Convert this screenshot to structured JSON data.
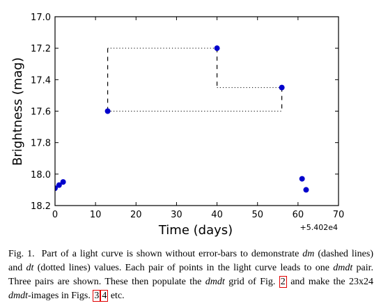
{
  "chart_data": {
    "type": "scatter",
    "xlabel": "Time (days)",
    "ylabel": "Brightness (mag)",
    "x_offset_label": "+5.402e4",
    "xlim": [
      0,
      70
    ],
    "ylim": [
      18.2,
      17.0
    ],
    "y_inverted": true,
    "grid": false,
    "x_ticks": [
      0,
      10,
      20,
      30,
      40,
      50,
      60,
      70
    ],
    "x_tick_labels": [
      "0",
      "10",
      "20",
      "30",
      "40",
      "50",
      "60",
      "70"
    ],
    "y_ticks": [
      17.0,
      17.2,
      17.4,
      17.6,
      17.8,
      18.0,
      18.2
    ],
    "y_tick_labels": [
      "17.0",
      "17.2",
      "17.4",
      "17.6",
      "17.8",
      "18.0",
      "18.2"
    ],
    "points": [
      {
        "x": 0,
        "y": 18.09
      },
      {
        "x": 1,
        "y": 18.07
      },
      {
        "x": 2,
        "y": 18.05
      },
      {
        "x": 13,
        "y": 17.6
      },
      {
        "x": 40,
        "y": 17.2
      },
      {
        "x": 56,
        "y": 17.45
      },
      {
        "x": 61,
        "y": 18.03
      },
      {
        "x": 62,
        "y": 18.1
      }
    ],
    "point_color": "#0000cc",
    "dm_dashed_lines": [
      {
        "x": [
          13,
          13
        ],
        "y": [
          17.6,
          17.2
        ]
      },
      {
        "x": [
          40,
          40
        ],
        "y": [
          17.2,
          17.45
        ]
      },
      {
        "x": [
          56,
          56
        ],
        "y": [
          17.45,
          17.6
        ]
      }
    ],
    "dt_dotted_lines": [
      {
        "x": [
          13,
          40
        ],
        "y": [
          17.2,
          17.2
        ]
      },
      {
        "x": [
          40,
          56
        ],
        "y": [
          17.45,
          17.45
        ]
      },
      {
        "x": [
          13,
          56
        ],
        "y": [
          17.6,
          17.6
        ]
      }
    ]
  },
  "caption": {
    "label": "Fig. 1.",
    "t1": "Part of a light curve is shown without error-bars to demonstrate",
    "dm": "dm",
    "t2": "(dashed lines) and",
    "dt": "dt",
    "t3": "(dotted lines) values. Each pair of points in the light curve leads to one",
    "dmdt1": "dmdt",
    "t4": "pair. Three pairs are shown. These then populate the",
    "dmdt2": "dmdt",
    "t5": "grid of Fig.",
    "ref_fig2": "2",
    "t6": "and make the 23x24",
    "dmdt3": "dmdt",
    "t7": "-images in Figs.",
    "ref_fig3": "3",
    "ref_fig4": "4",
    "t8": "etc."
  }
}
